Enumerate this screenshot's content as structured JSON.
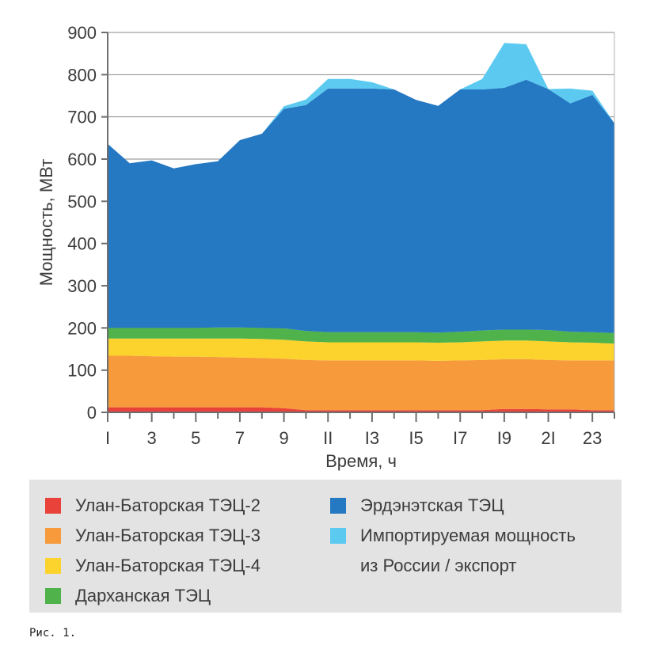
{
  "chart_data": {
    "type": "area",
    "stacked": true,
    "xlabel": "Время, ч",
    "ylabel": "Мощность, МВт",
    "ylim": [
      0,
      900
    ],
    "yticks": [
      0,
      100,
      200,
      300,
      400,
      500,
      600,
      700,
      800,
      900
    ],
    "xlim": [
      1,
      24
    ],
    "xticks": [
      1,
      3,
      5,
      7,
      9,
      11,
      13,
      15,
      17,
      19,
      21,
      23
    ],
    "xtick_labels": [
      "I",
      "3",
      "5",
      "7",
      "9",
      "II",
      "I3",
      "I5",
      "I7",
      "I9",
      "2I",
      "23"
    ],
    "x": [
      1,
      2,
      3,
      4,
      5,
      6,
      7,
      8,
      9,
      10,
      11,
      12,
      13,
      14,
      15,
      16,
      17,
      18,
      19,
      20,
      21,
      22,
      23,
      24
    ],
    "series": [
      {
        "name": "Улан-Баторская ТЭЦ-2",
        "color": "#e8423a",
        "values": [
          12,
          12,
          12,
          12,
          12,
          12,
          12,
          12,
          10,
          5,
          5,
          5,
          5,
          5,
          5,
          5,
          5,
          5,
          8,
          8,
          7,
          7,
          5,
          5
        ]
      },
      {
        "name": "Улан-Баторская ТЭЦ-3",
        "color": "#f79a3b",
        "values": [
          122,
          122,
          121,
          120,
          120,
          119,
          118,
          117,
          117,
          119,
          118,
          118,
          118,
          118,
          118,
          117,
          118,
          119,
          118,
          118,
          117,
          116,
          118,
          118
        ]
      },
      {
        "name": "Улан-Баторская ТЭЦ-4",
        "color": "#fbd32c",
        "values": [
          41,
          41,
          42,
          43,
          43,
          44,
          45,
          45,
          45,
          44,
          43,
          43,
          43,
          43,
          43,
          43,
          43,
          44,
          44,
          44,
          44,
          43,
          42,
          40
        ]
      },
      {
        "name": "Дарханская ТЭЦ",
        "color": "#4fb24a",
        "values": [
          25,
          25,
          25,
          25,
          25,
          26,
          26,
          26,
          27,
          25,
          24,
          24,
          24,
          24,
          24,
          24,
          25,
          26,
          26,
          26,
          27,
          25,
          25,
          25
        ]
      },
      {
        "name": "Эрдэнэтская ТЭЦ",
        "color": "#2578c2",
        "values": [
          436,
          390,
          397,
          378,
          388,
          394,
          444,
          460,
          520,
          535,
          577,
          577,
          577,
          575,
          550,
          537,
          574,
          571,
          573,
          592,
          571,
          541,
          562,
          497
        ]
      },
      {
        "name": "Импортируемая мощность из России / экспорт",
        "color": "#5ccaf0",
        "values": [
          0,
          0,
          0,
          0,
          0,
          0,
          0,
          0,
          6,
          13,
          23,
          23,
          15,
          0,
          0,
          0,
          0,
          25,
          106,
          84,
          0,
          35,
          10,
          0
        ]
      }
    ]
  },
  "legend": {
    "items": [
      {
        "label": "Улан-Баторская ТЭЦ-2",
        "color": "#e8423a"
      },
      {
        "label": "Улан-Баторская ТЭЦ-3",
        "color": "#f79a3b"
      },
      {
        "label": "Улан-Баторская ТЭЦ-4",
        "color": "#fbd32c"
      },
      {
        "label": "Дарханская ТЭЦ",
        "color": "#4fb24a"
      },
      {
        "label": "Эрдэнэтская ТЭЦ",
        "color": "#2578c2"
      },
      {
        "label_line1": "Импортируемая мощность",
        "label_line2": "из России / экспорт",
        "color": "#5ccaf0"
      }
    ]
  },
  "caption": "Рис. 1."
}
